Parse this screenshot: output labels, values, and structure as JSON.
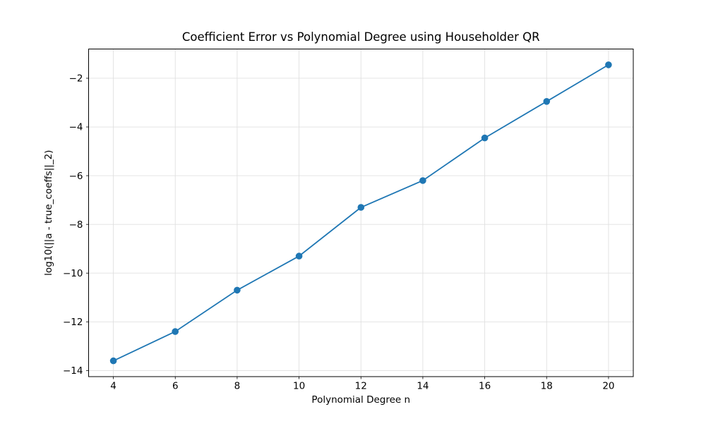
{
  "figure": {
    "background": "#ffffff"
  },
  "chart_data": {
    "type": "line",
    "title": "Coefficient Error vs Polynomial Degree using Householder QR",
    "xlabel": "Polynomial Degree n",
    "ylabel": "log10(||a - true_coeffs||_2)",
    "x": [
      4,
      6,
      8,
      10,
      12,
      14,
      16,
      18,
      20
    ],
    "y": [
      -13.6,
      -12.4,
      -10.7,
      -9.3,
      -7.3,
      -6.2,
      -4.45,
      -2.95,
      -1.45
    ],
    "x_ticks": [
      4,
      6,
      8,
      10,
      12,
      14,
      16,
      18,
      20
    ],
    "y_ticks": [
      -2,
      -4,
      -6,
      -8,
      -10,
      -12,
      -14
    ],
    "xlim": [
      3.2,
      20.8
    ],
    "ylim": [
      -14.25,
      -0.8
    ],
    "grid": true,
    "legend": "none",
    "line_color": "#1f77b4",
    "marker": "circle",
    "grid_color": "#e0e0e0",
    "spine_color": "#000000"
  }
}
